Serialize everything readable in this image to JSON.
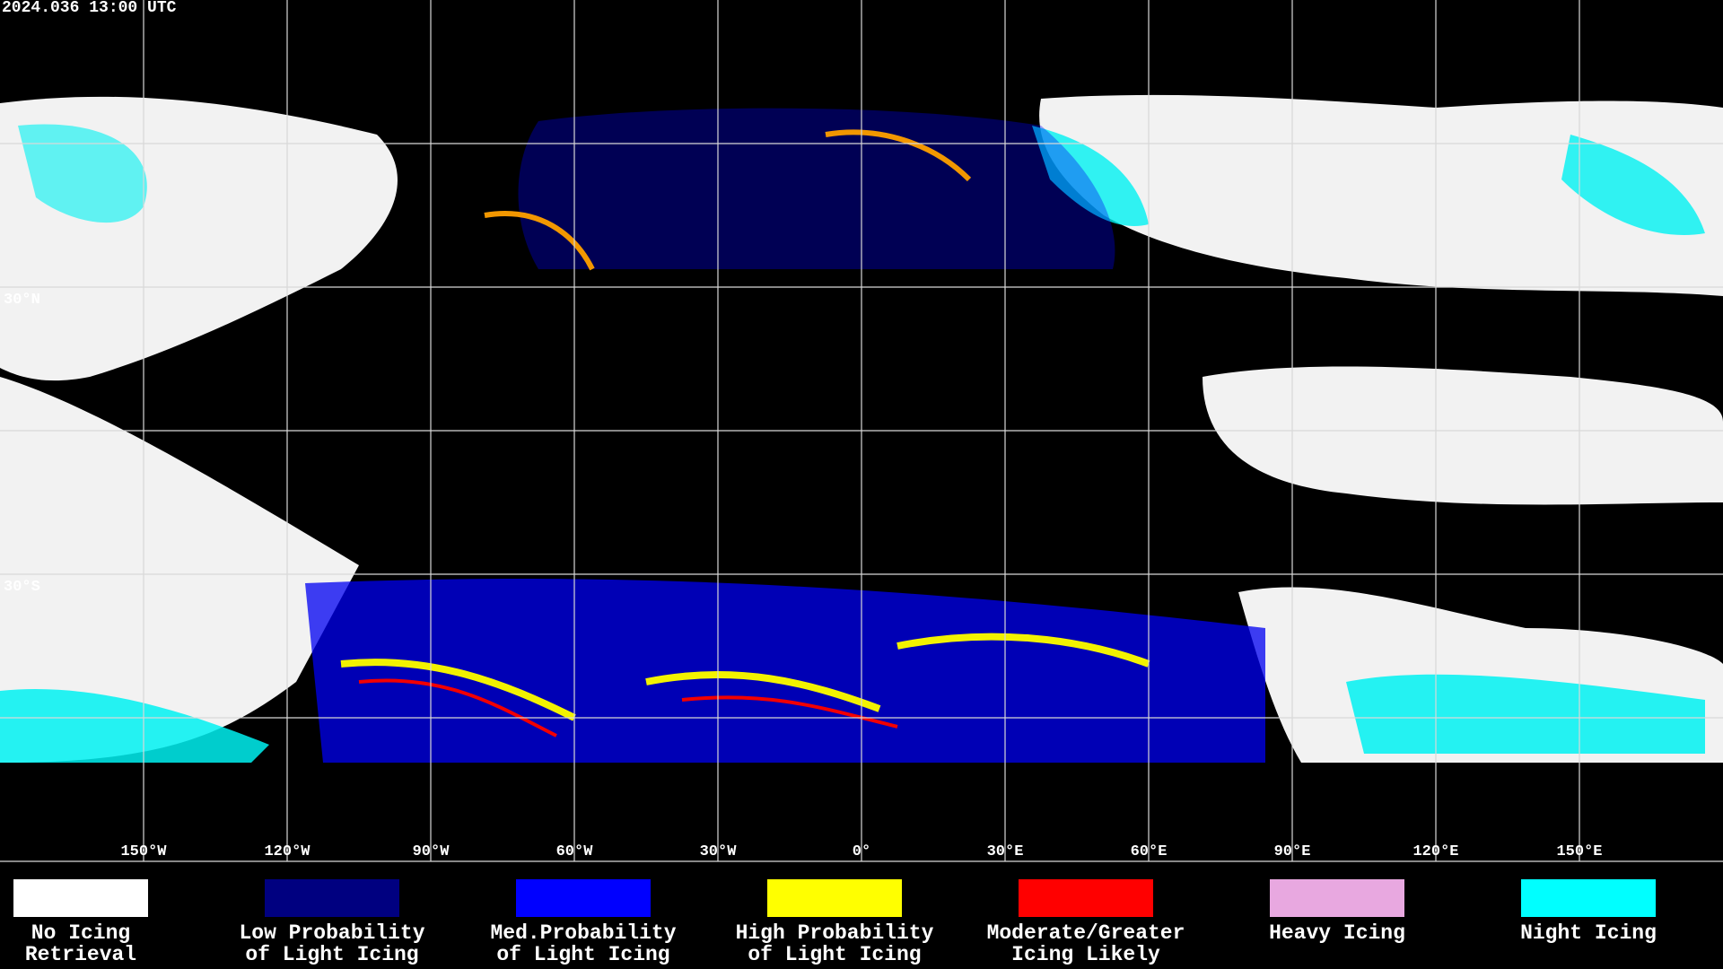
{
  "header": {
    "timestamp": "2024.036 13:00 UTC"
  },
  "map": {
    "lat_labels": [
      "30°N",
      "30°S"
    ],
    "lon_labels": [
      "150°W",
      "120°W",
      "90°W",
      "60°W",
      "30°W",
      "0°",
      "30°E",
      "60°E",
      "90°E",
      "120°E",
      "150°E"
    ]
  },
  "legend": [
    {
      "lines": [
        "No Icing",
        "Retrieval"
      ],
      "color": "#ffffff"
    },
    {
      "lines": [
        "Low Probability",
        "of Light Icing"
      ],
      "color": "#000080"
    },
    {
      "lines": [
        "Med.Probability",
        "of Light Icing"
      ],
      "color": "#0000ff"
    },
    {
      "lines": [
        "High Probability",
        "of Light Icing"
      ],
      "color": "#ffff00"
    },
    {
      "lines": [
        "Moderate/Greater",
        "Icing Likely"
      ],
      "color": "#ff0000"
    },
    {
      "lines": [
        "Heavy Icing"
      ],
      "color": "#e8a8e0"
    },
    {
      "lines": [
        "Night Icing"
      ],
      "color": "#00ffff"
    }
  ]
}
